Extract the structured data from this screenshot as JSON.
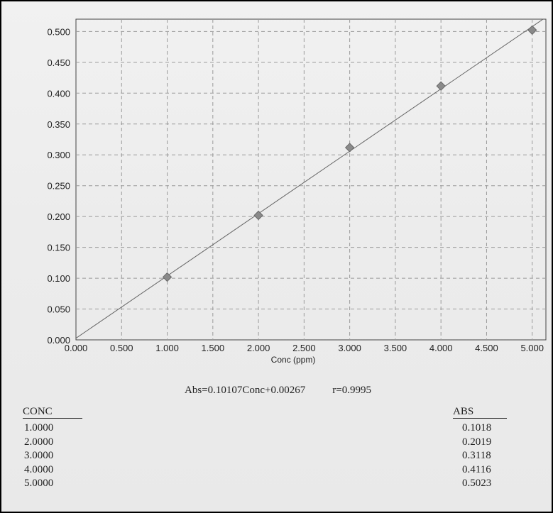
{
  "chart_data": {
    "type": "scatter",
    "title": "",
    "xlabel": "Conc (ppm)",
    "ylabel": "",
    "xlim": [
      0,
      5.15
    ],
    "ylim": [
      0,
      0.52
    ],
    "xticks": [
      "0.000",
      "0.500",
      "1.000",
      "1.500",
      "2.000",
      "2.500",
      "3.000",
      "3.500",
      "4.000",
      "4.500",
      "5.000"
    ],
    "yticks": [
      "0.000",
      "0.050",
      "0.100",
      "0.150",
      "0.200",
      "0.250",
      "0.300",
      "0.350",
      "0.400",
      "0.450",
      "0.500"
    ],
    "grid": true,
    "series": [
      {
        "x": [
          1.0,
          2.0,
          3.0,
          4.0,
          5.0
        ],
        "y": [
          0.1018,
          0.2019,
          0.3118,
          0.4116,
          0.5023
        ],
        "marker": "diamond"
      }
    ],
    "fit_line": {
      "slope": 0.10107,
      "intercept": 0.00267
    },
    "colors": {
      "marker": "#8a8a8a",
      "grid": "#9a9a9a",
      "line": "#666666"
    }
  },
  "equation": {
    "text": "Abs=0.10107Conc+0.00267",
    "r": "r=0.9995"
  },
  "table": {
    "conc_header": "CONC",
    "abs_header": "ABS",
    "rows": [
      {
        "conc": "1.0000",
        "abs": "0.1018"
      },
      {
        "conc": "2.0000",
        "abs": "0.2019"
      },
      {
        "conc": "3.0000",
        "abs": "0.3118"
      },
      {
        "conc": "4.0000",
        "abs": "0.4116"
      },
      {
        "conc": "5.0000",
        "abs": "0.5023"
      }
    ]
  }
}
